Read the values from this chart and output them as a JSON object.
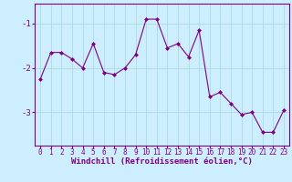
{
  "x": [
    0,
    1,
    2,
    3,
    4,
    5,
    6,
    7,
    8,
    9,
    10,
    11,
    12,
    13,
    14,
    15,
    16,
    17,
    18,
    19,
    20,
    21,
    22,
    23
  ],
  "y": [
    -2.25,
    -1.65,
    -1.65,
    -1.8,
    -2.0,
    -1.45,
    -2.1,
    -2.15,
    -2.0,
    -1.7,
    -0.9,
    -0.9,
    -1.55,
    -1.45,
    -1.75,
    -1.15,
    -2.65,
    -2.55,
    -2.8,
    -3.05,
    -3.0,
    -3.45,
    -3.45,
    -2.95
  ],
  "line_color": "#800080",
  "marker": "D",
  "marker_size": 2.0,
  "bg_color": "#cceeff",
  "grid_color": "#aadddd",
  "yticks": [
    -1,
    -2,
    -3
  ],
  "ylim": [
    -3.75,
    -0.55
  ],
  "xlim": [
    -0.5,
    23.5
  ],
  "xlabel": "Windchill (Refroidissement éolien,°C)",
  "xlabel_color": "#800080",
  "tick_color": "#800080",
  "axis_color": "#800080",
  "tick_fontsize": 5.5,
  "xlabel_fontsize": 6.5
}
